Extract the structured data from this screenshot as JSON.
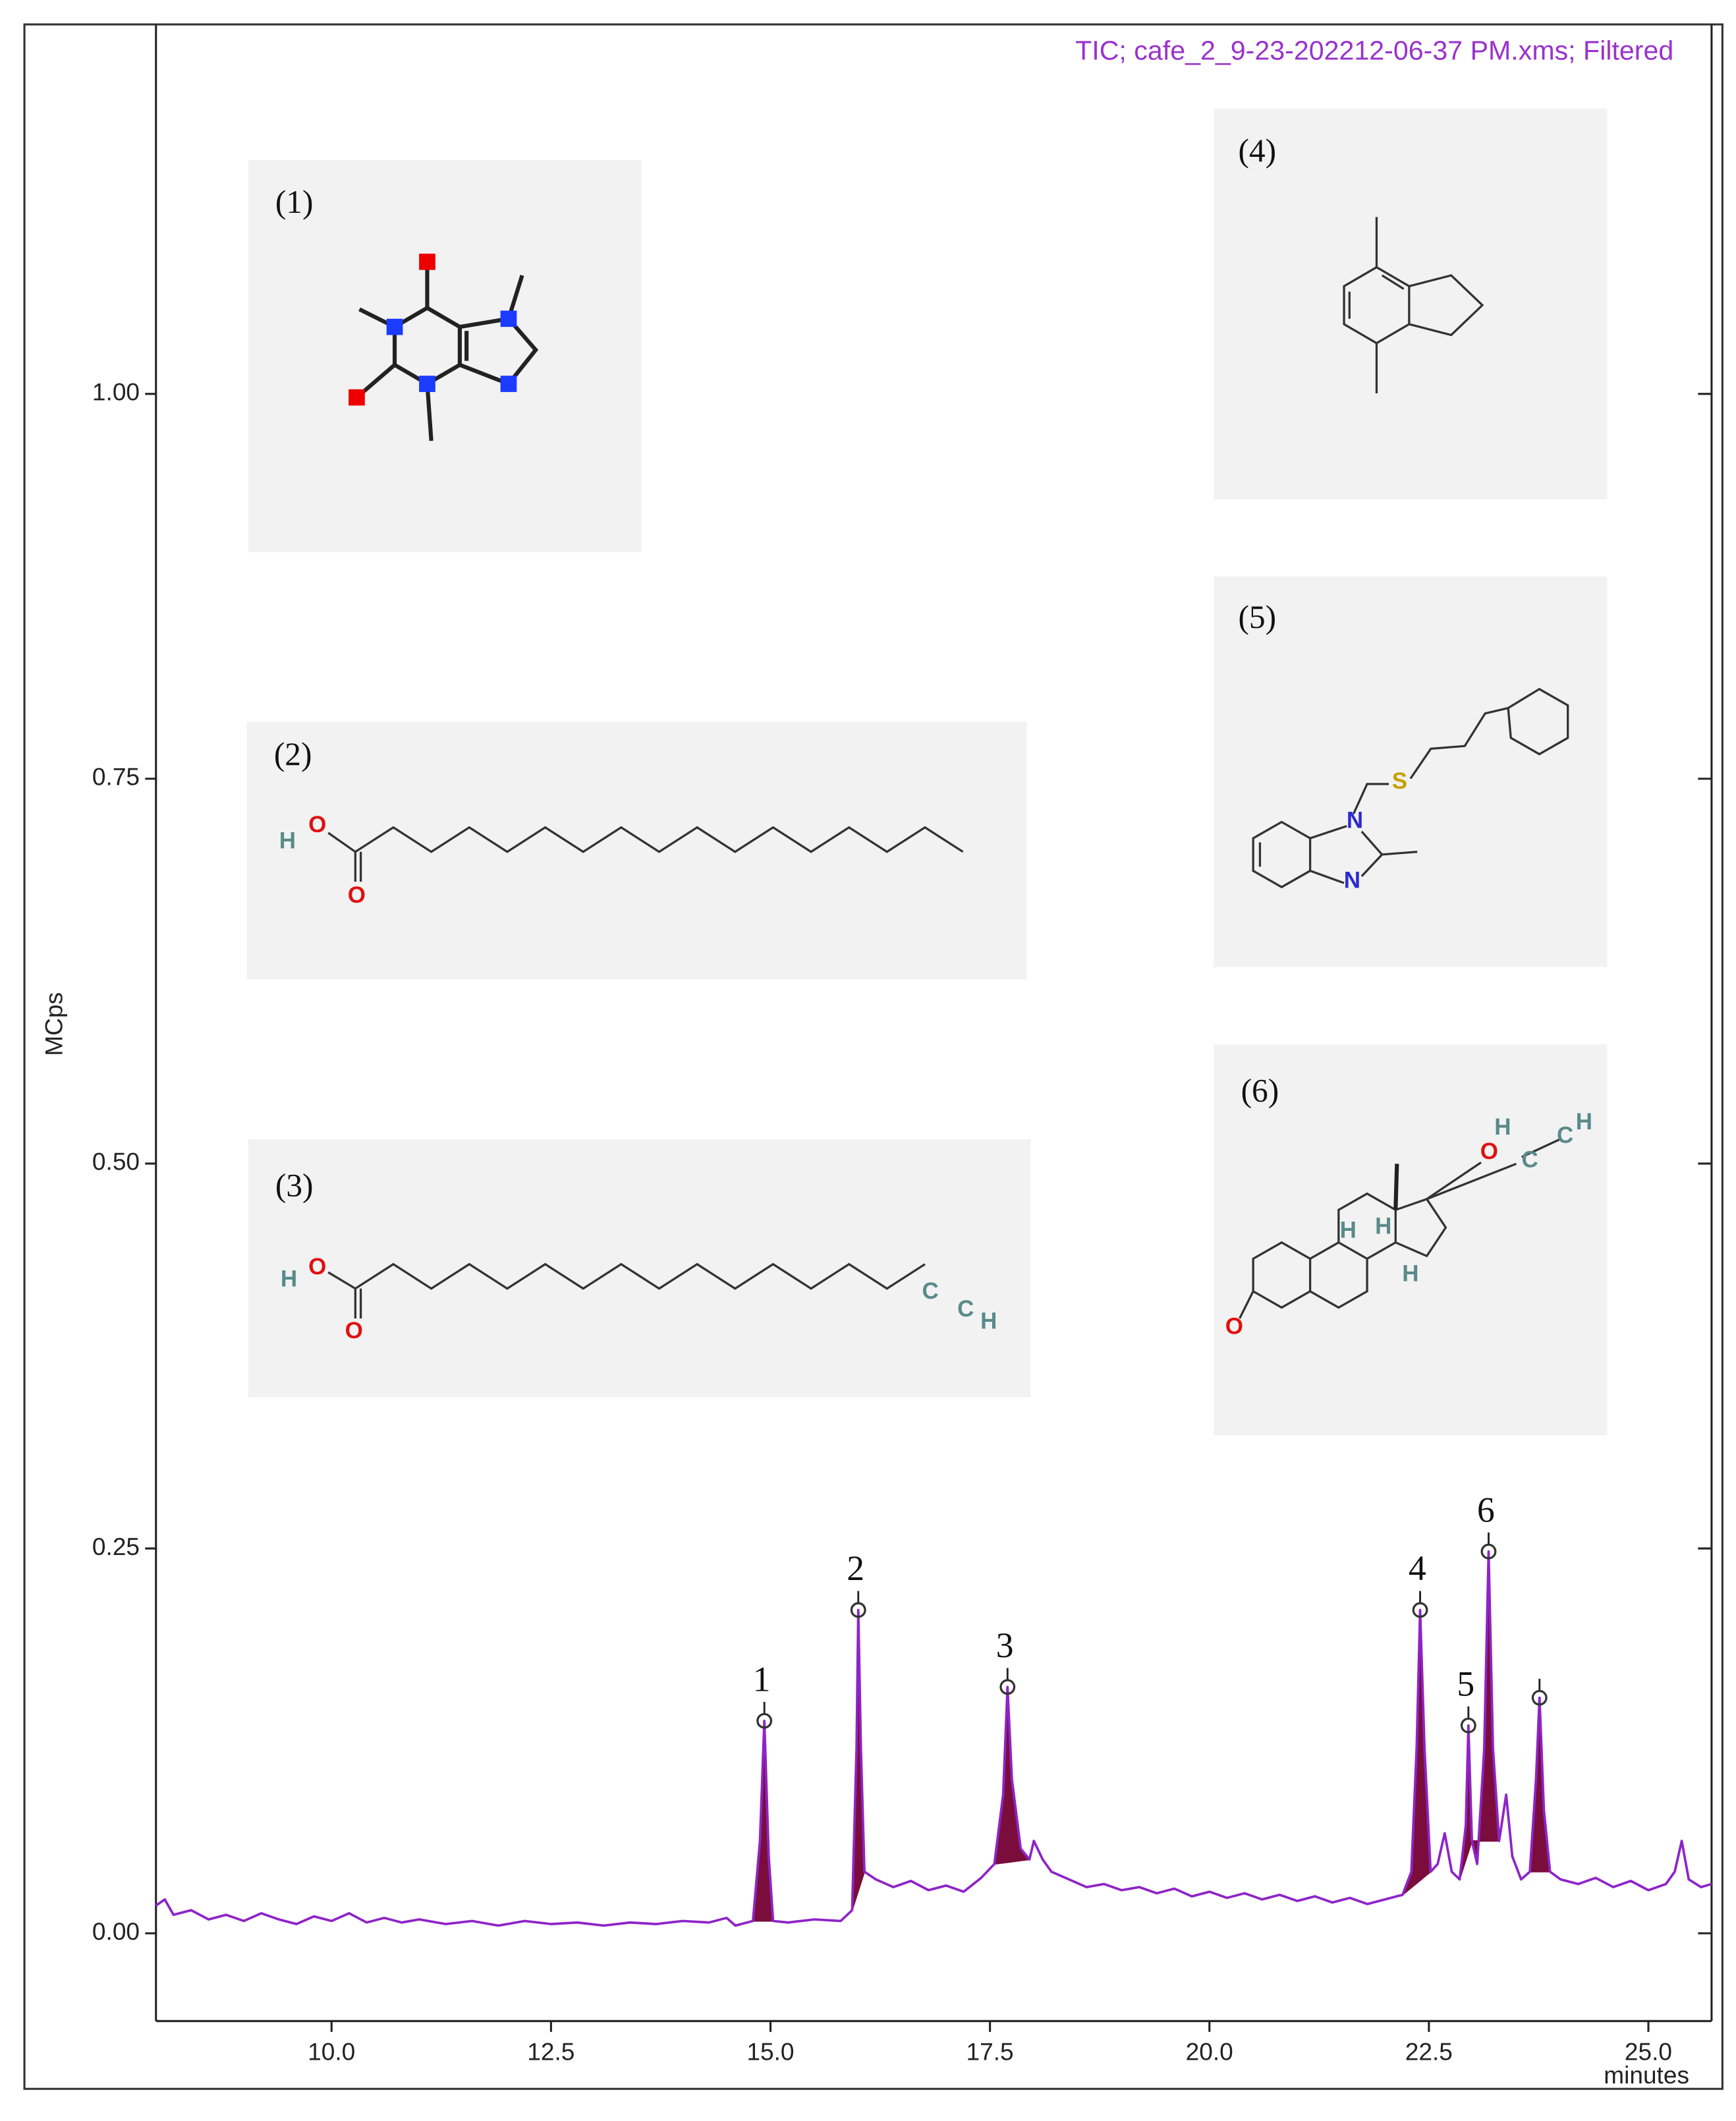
{
  "chart_data": {
    "type": "line",
    "subtitle": "TIC;  cafe_2_9-23-202212-06-37 PM.xms;  Filtered",
    "y_label": "MCps",
    "x_label": "minutes",
    "color": "#8e24c8",
    "fill_color": "#7a0d3c",
    "xlim": [
      8.0,
      25.72
    ],
    "ylim": [
      -0.057,
      1.24
    ],
    "xticks": [
      {
        "value": 10,
        "label": "10.0"
      },
      {
        "value": 12.5,
        "label": "12.5"
      },
      {
        "value": 15,
        "label": "15.0"
      },
      {
        "value": 17.5,
        "label": "17.5"
      },
      {
        "value": 20,
        "label": "20.0"
      },
      {
        "value": 22.5,
        "label": "22.5"
      },
      {
        "value": 25,
        "label": "25.0"
      }
    ],
    "yticks": [
      {
        "value": 0,
        "label": "0.00"
      },
      {
        "value": 0.25,
        "label": "0.25"
      },
      {
        "value": 0.5,
        "label": "0.50"
      },
      {
        "value": 0.75,
        "label": "0.75"
      },
      {
        "value": 1,
        "label": "1.00"
      }
    ],
    "x": [
      8.0,
      8.1,
      8.2,
      8.4,
      8.6,
      8.8,
      9.0,
      9.2,
      9.4,
      9.6,
      9.8,
      10.0,
      10.2,
      10.4,
      10.6,
      10.8,
      11.0,
      11.3,
      11.6,
      11.9,
      12.2,
      12.5,
      12.8,
      13.1,
      13.4,
      13.7,
      14.0,
      14.3,
      14.5,
      14.6,
      14.8,
      14.88,
      14.93,
      14.98,
      15.03,
      15.2,
      15.5,
      15.8,
      15.93,
      15.98,
      16.0,
      16.03,
      16.07,
      16.2,
      16.4,
      16.6,
      16.8,
      17.0,
      17.2,
      17.4,
      17.55,
      17.65,
      17.7,
      17.75,
      17.85,
      17.95,
      18.0,
      18.1,
      18.2,
      18.4,
      18.6,
      18.8,
      19.0,
      19.2,
      19.4,
      19.6,
      19.8,
      20.0,
      20.2,
      20.4,
      20.6,
      20.8,
      21.0,
      21.2,
      21.4,
      21.6,
      21.8,
      22.0,
      22.2,
      22.3,
      22.36,
      22.4,
      22.45,
      22.52,
      22.6,
      22.68,
      22.76,
      22.85,
      22.92,
      22.95,
      22.99,
      23.05,
      23.13,
      23.18,
      23.23,
      23.3,
      23.38,
      23.45,
      23.55,
      23.65,
      23.72,
      23.76,
      23.81,
      23.88,
      24.0,
      24.2,
      24.4,
      24.6,
      24.8,
      25.0,
      25.2,
      25.3,
      25.38,
      25.46,
      25.6,
      25.72
    ],
    "values": [
      0.018,
      0.022,
      0.012,
      0.015,
      0.009,
      0.012,
      0.008,
      0.013,
      0.009,
      0.006,
      0.011,
      0.008,
      0.013,
      0.007,
      0.01,
      0.007,
      0.009,
      0.006,
      0.008,
      0.005,
      0.008,
      0.006,
      0.007,
      0.005,
      0.007,
      0.006,
      0.008,
      0.007,
      0.01,
      0.005,
      0.008,
      0.06,
      0.138,
      0.05,
      0.008,
      0.007,
      0.009,
      0.008,
      0.015,
      0.12,
      0.21,
      0.12,
      0.04,
      0.035,
      0.03,
      0.034,
      0.028,
      0.031,
      0.027,
      0.036,
      0.045,
      0.09,
      0.16,
      0.1,
      0.055,
      0.048,
      0.06,
      0.048,
      0.04,
      0.035,
      0.03,
      0.032,
      0.028,
      0.03,
      0.026,
      0.029,
      0.024,
      0.027,
      0.023,
      0.026,
      0.022,
      0.025,
      0.021,
      0.024,
      0.02,
      0.023,
      0.019,
      0.022,
      0.025,
      0.04,
      0.12,
      0.21,
      0.12,
      0.04,
      0.045,
      0.065,
      0.04,
      0.035,
      0.07,
      0.135,
      0.06,
      0.045,
      0.12,
      0.248,
      0.12,
      0.06,
      0.09,
      0.05,
      0.035,
      0.04,
      0.1,
      0.153,
      0.08,
      0.04,
      0.035,
      0.032,
      0.036,
      0.03,
      0.034,
      0.028,
      0.032,
      0.04,
      0.06,
      0.035,
      0.03,
      0.032
    ],
    "filled_ranges": [
      [
        14.8,
        15.03
      ],
      [
        15.93,
        16.07
      ],
      [
        17.55,
        17.95
      ],
      [
        22.2,
        22.52
      ],
      [
        22.85,
        22.99
      ],
      [
        22.99,
        23.3
      ],
      [
        23.65,
        23.88
      ]
    ],
    "peaks": [
      {
        "x": 14.93,
        "y": 0.138,
        "label": "1"
      },
      {
        "x": 16.0,
        "y": 0.21,
        "label": "2"
      },
      {
        "x": 17.7,
        "y": 0.16,
        "label": "3"
      },
      {
        "x": 22.4,
        "y": 0.21,
        "label": "4"
      },
      {
        "x": 22.95,
        "y": 0.135,
        "label": "5"
      },
      {
        "x": 23.18,
        "y": 0.248,
        "label": "6"
      },
      {
        "x": 23.76,
        "y": 0.153,
        "label": null
      }
    ],
    "structures": [
      {
        "label": "(1)",
        "atoms": []
      },
      {
        "label": "(2)",
        "atoms": [
          "H",
          "O",
          "O"
        ]
      },
      {
        "label": "(3)",
        "atoms": [
          "H",
          "O",
          "O",
          "C",
          "C",
          "H"
        ]
      },
      {
        "label": "(4)",
        "atoms": []
      },
      {
        "label": "(5)",
        "atoms": [
          "N",
          "N",
          "S"
        ]
      },
      {
        "label": "(6)",
        "atoms": [
          "H",
          "O",
          "C",
          "C",
          "H",
          "H",
          "H",
          "H",
          "O"
        ]
      }
    ]
  }
}
